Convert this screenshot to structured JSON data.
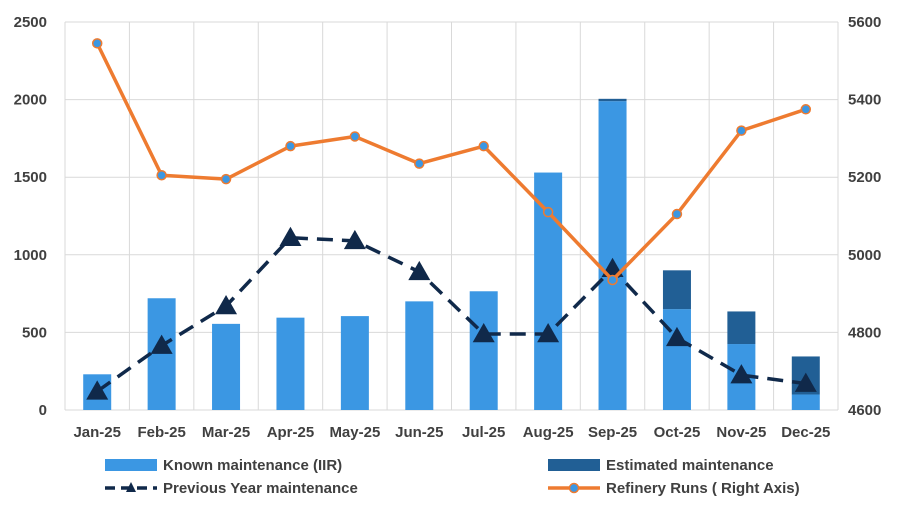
{
  "chart_data": {
    "type": "bar",
    "categories": [
      "Jan-25",
      "Feb-25",
      "Mar-25",
      "Apr-25",
      "May-25",
      "Jun-25",
      "Jul-25",
      "Aug-25",
      "Sep-25",
      "Oct-25",
      "Nov-25",
      "Dec-25"
    ],
    "series": [
      {
        "name": "Known maintenance  (IIR)",
        "kind": "bar-stack",
        "axis": "left",
        "color": "#3b97e3",
        "values": [
          230,
          720,
          555,
          595,
          605,
          700,
          765,
          1530,
          1990,
          650,
          425,
          100
        ]
      },
      {
        "name": "Estimated maintenance",
        "kind": "bar-stack",
        "axis": "left",
        "color": "#215f95",
        "values": [
          0,
          0,
          0,
          0,
          0,
          0,
          0,
          0,
          15,
          250,
          210,
          245
        ]
      },
      {
        "name": "Previous Year maintenance",
        "kind": "line-dashed-triangle",
        "axis": "left",
        "color": "#10294a",
        "values": [
          120,
          415,
          670,
          1110,
          1090,
          890,
          490,
          490,
          910,
          465,
          225,
          170
        ]
      },
      {
        "name": "Refinery Runs ( Right Axis)",
        "kind": "line-marker",
        "axis": "right",
        "color": "#ee7b30",
        "marker_color": "#3b97e3",
        "values": [
          5545,
          5205,
          5195,
          5280,
          5305,
          5235,
          5280,
          5110,
          4935,
          5105,
          5320,
          5375
        ]
      }
    ],
    "y_left": {
      "min": 0,
      "max": 2500,
      "ticks": [
        0,
        500,
        1000,
        1500,
        2000,
        2500
      ]
    },
    "y_right": {
      "min": 4600,
      "max": 5600,
      "ticks": [
        4600,
        4800,
        5000,
        5200,
        5400,
        5600
      ]
    },
    "grid": true,
    "legend_position": "bottom"
  }
}
